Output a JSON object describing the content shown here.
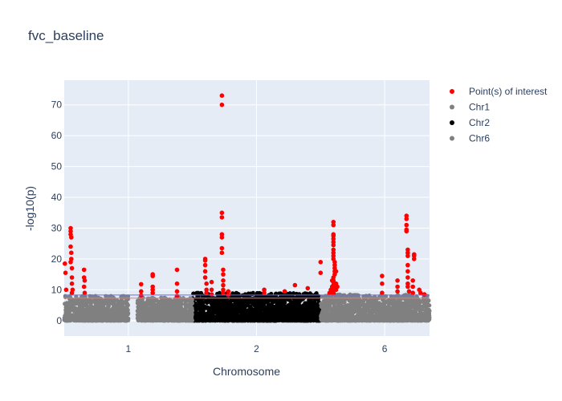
{
  "chart_data": {
    "type": "scatter",
    "title": "fvc_baseline",
    "xlabel": "Chromosome",
    "ylabel": "-log10(p)",
    "ylim": [
      -5,
      78
    ],
    "y_ticks": [
      0,
      10,
      20,
      30,
      40,
      50,
      60,
      70
    ],
    "x_ticks": [
      {
        "x": 1,
        "label": "1"
      },
      {
        "x": 2,
        "label": "2"
      },
      {
        "x": 3,
        "label": "6"
      }
    ],
    "xlim": [
      0.5,
      3.35
    ],
    "grid": true,
    "legend_position": "top-right",
    "colors": {
      "interest": "#ff0000",
      "chr1": "#808080",
      "chr2": "#000000",
      "chr6": "#808080",
      "plot_bg": "#e5ecf6",
      "threshold_blue": "#6a6af0",
      "threshold_red": "#e87a7a"
    },
    "thresholds": [
      8.3,
      7.3
    ],
    "series": [
      {
        "name": "Point(s) of interest",
        "color": "#ff0000",
        "points": [
          [
            0.505,
            18.5
          ],
          [
            0.51,
            15.5
          ],
          [
            0.515,
            10
          ],
          [
            0.55,
            30
          ],
          [
            0.55,
            29
          ],
          [
            0.55,
            28
          ],
          [
            0.555,
            27
          ],
          [
            0.55,
            24
          ],
          [
            0.555,
            22
          ],
          [
            0.555,
            20
          ],
          [
            0.55,
            19
          ],
          [
            0.56,
            17
          ],
          [
            0.56,
            14
          ],
          [
            0.56,
            12
          ],
          [
            0.565,
            10
          ],
          [
            0.56,
            9
          ],
          [
            0.655,
            16.5
          ],
          [
            0.655,
            14
          ],
          [
            0.66,
            13
          ],
          [
            0.655,
            11
          ],
          [
            0.66,
            9
          ],
          [
            1.1,
            11.8
          ],
          [
            1.1,
            9.5
          ],
          [
            1.1,
            8.2
          ],
          [
            1.19,
            15
          ],
          [
            1.19,
            14.5
          ],
          [
            1.19,
            11
          ],
          [
            1.19,
            10
          ],
          [
            1.19,
            9
          ],
          [
            1.38,
            16.5
          ],
          [
            1.38,
            12
          ],
          [
            1.38,
            9.5
          ],
          [
            1.38,
            8
          ],
          [
            1.6,
            20
          ],
          [
            1.6,
            19.5
          ],
          [
            1.6,
            18
          ],
          [
            1.6,
            16
          ],
          [
            1.6,
            14
          ],
          [
            1.61,
            12
          ],
          [
            1.61,
            10
          ],
          [
            1.61,
            9
          ],
          [
            1.65,
            12.5
          ],
          [
            1.65,
            10
          ],
          [
            1.65,
            8.5
          ],
          [
            1.73,
            73
          ],
          [
            1.73,
            70
          ],
          [
            1.73,
            35
          ],
          [
            1.73,
            33.5
          ],
          [
            1.73,
            28
          ],
          [
            1.73,
            27
          ],
          [
            1.73,
            23.5
          ],
          [
            1.73,
            22
          ],
          [
            1.74,
            16.5
          ],
          [
            1.74,
            15
          ],
          [
            1.74,
            13
          ],
          [
            1.74,
            11.5
          ],
          [
            1.74,
            10
          ],
          [
            1.74,
            9
          ],
          [
            1.78,
            9.5
          ],
          [
            1.78,
            8.3
          ],
          [
            2.06,
            10
          ],
          [
            2.06,
            9
          ],
          [
            2.22,
            9.5
          ],
          [
            2.3,
            11.5
          ],
          [
            2.4,
            10.5
          ],
          [
            2.5,
            19
          ],
          [
            2.5,
            15.5
          ],
          [
            2.6,
            32
          ],
          [
            2.6,
            31
          ],
          [
            2.6,
            28
          ],
          [
            2.6,
            27.5
          ],
          [
            2.6,
            26.5
          ],
          [
            2.6,
            25.5
          ],
          [
            2.6,
            24.5
          ],
          [
            2.6,
            23
          ],
          [
            2.6,
            22
          ],
          [
            2.6,
            21
          ],
          [
            2.6,
            20
          ],
          [
            2.61,
            19
          ],
          [
            2.61,
            18
          ],
          [
            2.61,
            17
          ],
          [
            2.61,
            16
          ],
          [
            2.61,
            15
          ],
          [
            2.6,
            14
          ],
          [
            2.6,
            13
          ],
          [
            2.6,
            12.5
          ],
          [
            2.6,
            11.5
          ],
          [
            2.6,
            10.5
          ],
          [
            2.6,
            9.5
          ],
          [
            2.6,
            8.8
          ],
          [
            2.59,
            13
          ],
          [
            2.59,
            11
          ],
          [
            2.59,
            9.5
          ],
          [
            2.62,
            16
          ],
          [
            2.62,
            12
          ],
          [
            2.62,
            10
          ],
          [
            2.63,
            11
          ],
          [
            2.58,
            10
          ],
          [
            2.57,
            9
          ],
          [
            2.98,
            14.5
          ],
          [
            2.98,
            12
          ],
          [
            2.98,
            9
          ],
          [
            3.1,
            13
          ],
          [
            3.1,
            11
          ],
          [
            3.1,
            9.5
          ],
          [
            3.17,
            34
          ],
          [
            3.17,
            33
          ],
          [
            3.17,
            31
          ],
          [
            3.17,
            29.5
          ],
          [
            3.17,
            29
          ],
          [
            3.18,
            23
          ],
          [
            3.18,
            22
          ],
          [
            3.18,
            21
          ],
          [
            3.18,
            18
          ],
          [
            3.18,
            16
          ],
          [
            3.18,
            14
          ],
          [
            3.18,
            12
          ],
          [
            3.18,
            11
          ],
          [
            3.19,
            9.5
          ],
          [
            3.23,
            21.5
          ],
          [
            3.23,
            21
          ],
          [
            3.23,
            20
          ],
          [
            3.22,
            13
          ],
          [
            3.22,
            11
          ],
          [
            3.22,
            9
          ],
          [
            3.27,
            10
          ],
          [
            3.28,
            9
          ],
          [
            3.31,
            8.5
          ]
        ]
      },
      {
        "name": "Chr1",
        "color": "#808080",
        "x_range": [
          0.5,
          1.0
        ],
        "y_max": 8,
        "seed": 11
      },
      {
        "name": "Chr2",
        "color": "#000000",
        "x_range": [
          1.5,
          2.5
        ],
        "y_max": 9,
        "seed": 23
      },
      {
        "name": "Chr6",
        "color": "#808080",
        "x_range": [
          2.5,
          3.35
        ],
        "y_max": 8.5,
        "seed": 37
      }
    ],
    "bulk_segments": [
      {
        "series": "Chr1",
        "x_range": [
          1.07,
          1.5
        ],
        "y_max": 7.5,
        "seed": 5
      }
    ]
  }
}
